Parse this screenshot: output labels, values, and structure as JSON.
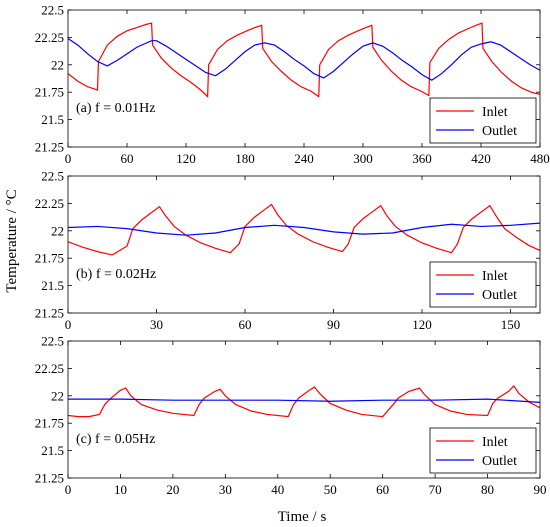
{
  "figure": {
    "ylabel": "Temperature / °C",
    "xlabel": "Time / s"
  },
  "chart_data": [
    {
      "type": "line",
      "panel_label": "(a) f = 0.01Hz",
      "xlim": [
        0,
        480
      ],
      "ylim": [
        21.25,
        22.5
      ],
      "xticks": [
        0,
        60,
        120,
        180,
        240,
        300,
        360,
        420,
        480
      ],
      "yticks": [
        21.25,
        21.5,
        21.75,
        22,
        22.25,
        22.5
      ],
      "ytick_labels": [
        "21.25",
        "21.5",
        "21.75",
        "22",
        "22.25",
        "22.5"
      ],
      "legend": {
        "position": "bottom-right"
      },
      "series": [
        {
          "name": "Inlet",
          "color": "#ff0000",
          "x": [
            0,
            10,
            20,
            30,
            31,
            40,
            50,
            60,
            70,
            80,
            85,
            86,
            95,
            105,
            115,
            125,
            135,
            142,
            143,
            152,
            162,
            172,
            182,
            190,
            197,
            198,
            207,
            217,
            227,
            237,
            247,
            255,
            256,
            265,
            275,
            285,
            295,
            303,
            309,
            310,
            319,
            329,
            339,
            349,
            359,
            367,
            368,
            377,
            387,
            397,
            407,
            415,
            421,
            422,
            431,
            441,
            451,
            461,
            471,
            480
          ],
          "y": [
            21.92,
            21.85,
            21.8,
            21.77,
            22.03,
            22.18,
            22.26,
            22.31,
            22.34,
            22.37,
            22.38,
            22.18,
            22.06,
            21.97,
            21.9,
            21.84,
            21.77,
            21.71,
            22.0,
            22.14,
            22.22,
            22.27,
            22.31,
            22.34,
            22.36,
            22.15,
            22.03,
            21.94,
            21.86,
            21.8,
            21.76,
            21.71,
            22.0,
            22.14,
            22.22,
            22.27,
            22.31,
            22.34,
            22.36,
            22.16,
            22.04,
            21.94,
            21.86,
            21.8,
            21.76,
            21.72,
            22.02,
            22.15,
            22.23,
            22.29,
            22.33,
            22.36,
            22.38,
            22.15,
            22.03,
            21.93,
            21.85,
            21.79,
            21.75,
            21.73
          ]
        },
        {
          "name": "Outlet",
          "color": "#0000ff",
          "x": [
            0,
            10,
            20,
            30,
            40,
            50,
            60,
            70,
            80,
            85,
            90,
            100,
            110,
            120,
            130,
            140,
            150,
            160,
            170,
            180,
            190,
            200,
            210,
            220,
            230,
            240,
            250,
            260,
            270,
            280,
            290,
            300,
            310,
            320,
            330,
            340,
            350,
            360,
            370,
            380,
            390,
            400,
            410,
            420,
            430,
            440,
            450,
            460,
            470,
            480
          ],
          "y": [
            22.24,
            22.18,
            22.1,
            22.03,
            21.99,
            22.04,
            22.1,
            22.16,
            22.2,
            22.22,
            22.22,
            22.17,
            22.11,
            22.05,
            21.99,
            21.93,
            21.9,
            21.96,
            22.04,
            22.12,
            22.18,
            22.2,
            22.18,
            22.12,
            22.05,
            21.99,
            21.92,
            21.88,
            21.94,
            22.02,
            22.1,
            22.17,
            22.2,
            22.17,
            22.11,
            22.04,
            21.98,
            21.91,
            21.86,
            21.92,
            22.0,
            22.09,
            22.16,
            22.19,
            22.21,
            22.18,
            22.12,
            22.06,
            22.0,
            21.95
          ]
        }
      ]
    },
    {
      "type": "line",
      "panel_label": "(b) f = 0.02Hz",
      "xlim": [
        0,
        160
      ],
      "ylim": [
        21.25,
        22.5
      ],
      "xticks": [
        0,
        30,
        60,
        90,
        120,
        150
      ],
      "yticks": [
        21.25,
        21.5,
        21.75,
        22,
        22.25,
        22.5
      ],
      "ytick_labels": [
        "21.25",
        "21.5",
        "21.75",
        "22",
        "22.25",
        "22.5"
      ],
      "legend": {
        "position": "bottom-right"
      },
      "series": [
        {
          "name": "Inlet",
          "color": "#ff0000",
          "x": [
            0,
            5,
            10,
            15,
            20,
            22,
            25,
            28,
            31,
            33,
            36,
            40,
            45,
            50,
            55,
            58,
            60,
            63,
            66,
            69,
            71,
            74,
            78,
            83,
            88,
            93,
            95,
            97,
            100,
            103,
            106,
            108,
            111,
            115,
            120,
            125,
            130,
            132,
            134,
            137,
            140,
            143,
            145,
            148,
            152,
            156,
            160
          ],
          "y": [
            21.9,
            21.85,
            21.81,
            21.78,
            21.86,
            22.02,
            22.1,
            22.16,
            22.22,
            22.14,
            22.04,
            21.96,
            21.89,
            21.84,
            21.8,
            21.88,
            22.04,
            22.12,
            22.18,
            22.24,
            22.15,
            22.05,
            21.97,
            21.9,
            21.85,
            21.81,
            21.88,
            22.03,
            22.11,
            22.17,
            22.23,
            22.14,
            22.04,
            21.96,
            21.89,
            21.84,
            21.8,
            21.88,
            22.03,
            22.11,
            22.17,
            22.23,
            22.14,
            22.02,
            21.94,
            21.87,
            21.82
          ]
        },
        {
          "name": "Outlet",
          "color": "#0000ff",
          "x": [
            0,
            10,
            20,
            30,
            40,
            50,
            60,
            70,
            80,
            90,
            100,
            110,
            120,
            130,
            140,
            150,
            160
          ],
          "y": [
            22.03,
            22.04,
            22.02,
            21.98,
            21.96,
            21.98,
            22.03,
            22.05,
            22.03,
            21.99,
            21.97,
            21.98,
            22.03,
            22.06,
            22.04,
            22.05,
            22.07
          ]
        }
      ]
    },
    {
      "type": "line",
      "panel_label": "(c) f = 0.05Hz",
      "xlim": [
        0,
        90
      ],
      "ylim": [
        21.25,
        22.5
      ],
      "xticks": [
        0,
        10,
        20,
        30,
        40,
        50,
        60,
        70,
        80,
        90
      ],
      "yticks": [
        21.25,
        21.5,
        21.75,
        22,
        22.25,
        22.5
      ],
      "ytick_labels": [
        "21.25",
        "21.5",
        "21.75",
        "22",
        "22.25",
        "22.5"
      ],
      "legend": {
        "position": "bottom-right"
      },
      "series": [
        {
          "name": "Inlet",
          "color": "#ff0000",
          "x": [
            0,
            2,
            4,
            6,
            7,
            8,
            10,
            11,
            12,
            14,
            17,
            20,
            24,
            25,
            26,
            28,
            29,
            30,
            32,
            35,
            38,
            42,
            43,
            44,
            46,
            47,
            48,
            50,
            53,
            56,
            60,
            62,
            63,
            65,
            67,
            68,
            70,
            73,
            76,
            80,
            81,
            82,
            84,
            85,
            86,
            88,
            90
          ],
          "y": [
            21.82,
            21.81,
            21.81,
            21.83,
            21.92,
            21.97,
            22.05,
            22.07,
            22.0,
            21.92,
            21.87,
            21.84,
            21.82,
            21.92,
            21.98,
            22.04,
            22.06,
            22.0,
            21.92,
            21.86,
            21.83,
            21.81,
            21.92,
            21.98,
            22.05,
            22.08,
            22.02,
            21.93,
            21.87,
            21.83,
            21.81,
            21.92,
            21.98,
            22.04,
            22.07,
            22.01,
            21.92,
            21.86,
            21.83,
            21.82,
            21.93,
            21.98,
            22.04,
            22.09,
            22.02,
            21.94,
            21.89
          ]
        },
        {
          "name": "Outlet",
          "color": "#0000ff",
          "x": [
            0,
            10,
            20,
            30,
            40,
            50,
            60,
            70,
            80,
            90
          ],
          "y": [
            21.97,
            21.97,
            21.96,
            21.96,
            21.96,
            21.95,
            21.96,
            21.96,
            21.97,
            21.94
          ]
        }
      ]
    }
  ]
}
